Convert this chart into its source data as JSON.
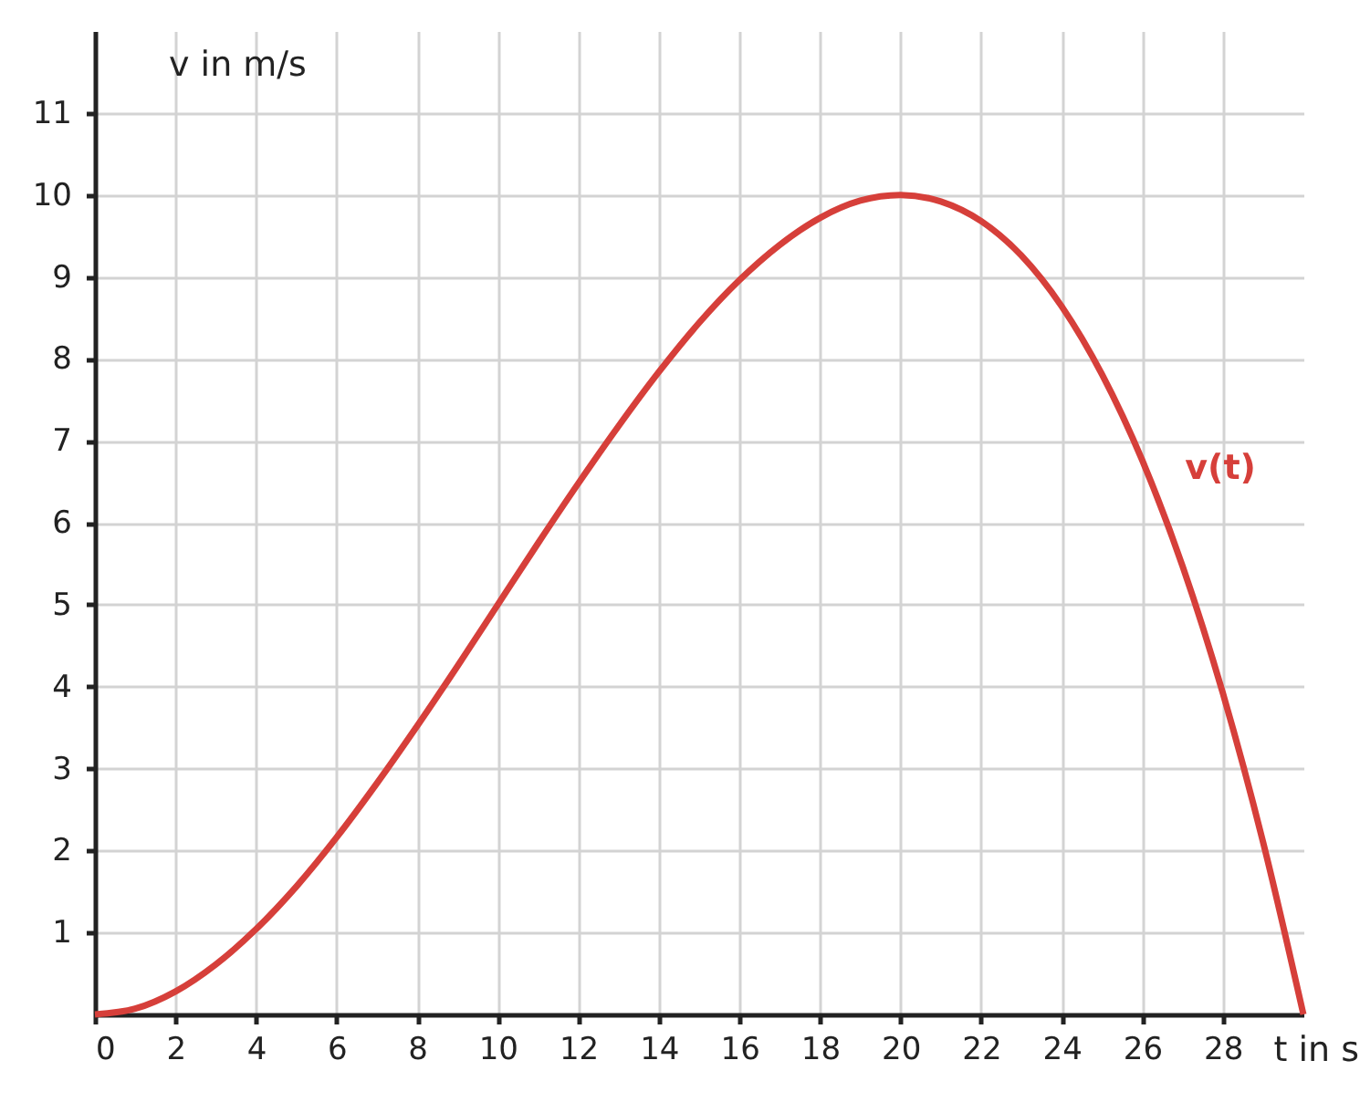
{
  "chart_data": {
    "type": "line",
    "xlabel": "t in s",
    "ylabel": "v in m/s",
    "x": [
      0,
      1,
      2,
      3,
      4,
      5,
      6,
      7,
      8,
      9,
      10,
      11,
      12,
      13,
      14,
      15,
      16,
      17,
      18,
      19,
      20,
      21,
      22,
      23,
      24,
      25,
      26,
      27,
      28,
      29,
      30
    ],
    "series": [
      {
        "name": "v(t)",
        "color": "#d63f3a",
        "values": [
          0,
          0.07,
          0.28,
          0.61,
          1.04,
          1.56,
          2.16,
          2.82,
          3.52,
          4.25,
          5.0,
          5.75,
          6.48,
          7.18,
          7.84,
          8.44,
          8.96,
          9.39,
          9.72,
          9.93,
          10,
          9.92,
          9.68,
          9.26,
          8.64,
          7.81,
          6.76,
          5.47,
          3.92,
          2.1,
          0
        ]
      }
    ],
    "xlim": [
      0,
      30
    ],
    "ylim": [
      0,
      12
    ],
    "xticks": [
      0,
      2,
      4,
      6,
      8,
      10,
      12,
      14,
      16,
      18,
      20,
      22,
      24,
      26,
      28
    ],
    "yticks": [
      1,
      2,
      3,
      4,
      5,
      6,
      7,
      8,
      9,
      10,
      11
    ],
    "grid": true,
    "marker": "none",
    "line_style": "solid"
  }
}
